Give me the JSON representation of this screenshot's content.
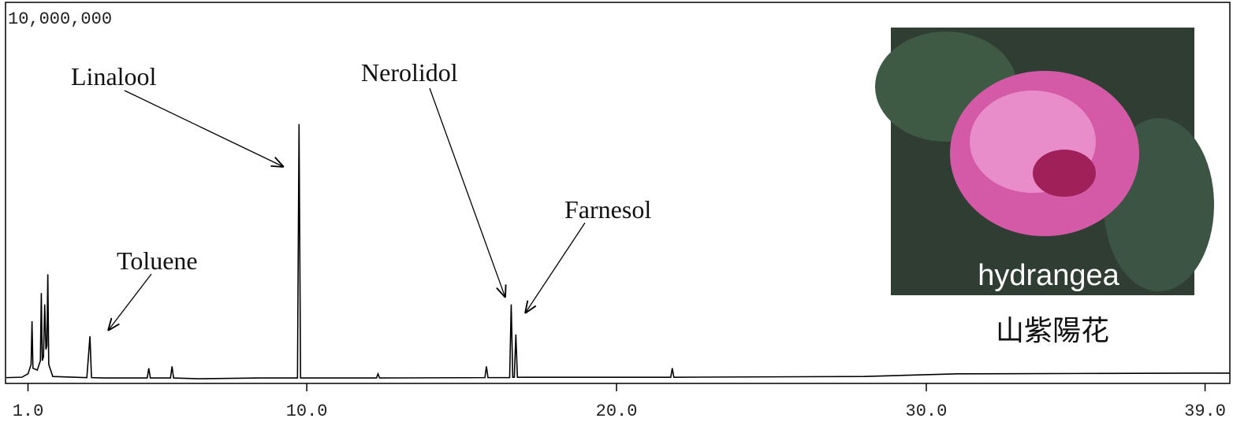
{
  "chart_data": {
    "type": "line",
    "x": [
      0.3,
      0.8,
      1.0,
      1.1,
      1.13,
      1.16,
      1.3,
      1.4,
      1.43,
      1.46,
      1.5,
      1.54,
      1.58,
      1.61,
      1.64,
      1.67,
      1.8,
      2.9,
      3.0,
      3.05,
      3.5,
      4.85,
      4.9,
      4.95,
      5.6,
      5.65,
      5.7,
      6.5,
      8.5,
      9.7,
      9.75,
      9.8,
      12.25,
      12.3,
      12.35,
      15.75,
      15.8,
      15.85,
      16.55,
      16.6,
      16.65,
      16.7,
      16.75,
      16.8,
      21.75,
      21.8,
      21.85,
      28,
      31,
      35,
      39.8
    ],
    "series": [
      {
        "color": "#000000",
        "values": [
          50000,
          60000,
          150000,
          400000,
          1550000,
          300000,
          250000,
          500000,
          2300000,
          500000,
          600000,
          2000000,
          800000,
          900000,
          2800000,
          400000,
          80000,
          50000,
          1150000,
          50000,
          40000,
          40000,
          300000,
          40000,
          40000,
          350000,
          40000,
          20000,
          40000,
          40000,
          6800000,
          40000,
          40000,
          150000,
          40000,
          50000,
          350000,
          50000,
          50000,
          2000000,
          60000,
          60000,
          1200000,
          60000,
          60000,
          300000,
          60000,
          80000,
          150000,
          160000,
          170000
        ]
      }
    ],
    "xlim": [
      0.3,
      39.8
    ],
    "xticks": [
      {
        "value": 1,
        "label": "1.0"
      },
      {
        "value": 10,
        "label": "10.0"
      },
      {
        "value": 20,
        "label": "20.0"
      },
      {
        "value": 30,
        "label": "30.0"
      },
      {
        "value": 39,
        "label": "39.0"
      }
    ],
    "ylim": [
      0,
      10000000
    ],
    "yticks": [
      {
        "value": 10000000,
        "label": "10,000,000"
      }
    ],
    "annotations": [
      {
        "text": "Linalool"
      },
      {
        "text": "Toluene"
      },
      {
        "text": "Nerolidol"
      },
      {
        "text": "Farnesol"
      }
    ]
  },
  "photo": {
    "caption": "hydrangea",
    "label": "山紫陽花"
  }
}
